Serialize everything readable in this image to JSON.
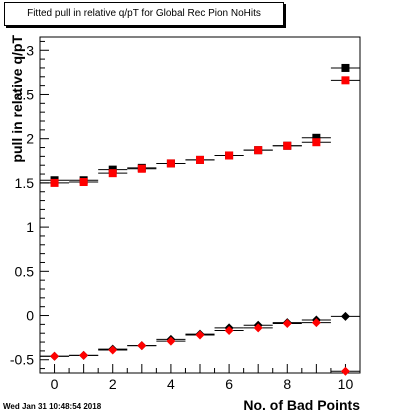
{
  "chart_data": {
    "type": "scatter",
    "title": "Fitted pull in relative q/pT for Global Rec Pion NoHits",
    "xlabel": "No. of Bad Points",
    "ylabel": "pull in relative q/pT",
    "xlim": [
      -0.5,
      10.5
    ],
    "ylim": [
      -0.65,
      3.15
    ],
    "xticks": [
      0,
      2,
      4,
      6,
      8,
      10
    ],
    "yticks": [
      -0.5,
      0,
      0.5,
      1,
      1.5,
      2,
      2.5,
      3
    ],
    "ytick_labels": [
      "-0.5",
      "0",
      "0.5",
      "1",
      "1.5",
      "2",
      "2.5",
      "3"
    ],
    "series": [
      {
        "marker": "square",
        "color": "#000000",
        "x": [
          0,
          1,
          2,
          3,
          4,
          5,
          6,
          7,
          8,
          9,
          10
        ],
        "y": [
          1.53,
          1.53,
          1.65,
          1.67,
          1.72,
          1.76,
          1.81,
          1.87,
          1.92,
          2.01,
          2.8
        ]
      },
      {
        "marker": "square",
        "color": "#ff0000",
        "x": [
          0,
          1,
          2,
          3,
          4,
          5,
          6,
          7,
          8,
          9,
          10
        ],
        "y": [
          1.5,
          1.51,
          1.61,
          1.66,
          1.72,
          1.76,
          1.81,
          1.87,
          1.92,
          1.96,
          2.66
        ]
      },
      {
        "marker": "diamond",
        "color": "#000000",
        "x": [
          0,
          1,
          2,
          3,
          4,
          5,
          6,
          7,
          8,
          9,
          10
        ],
        "y": [
          -0.46,
          -0.45,
          -0.38,
          -0.34,
          -0.27,
          -0.21,
          -0.14,
          -0.11,
          -0.08,
          -0.05,
          -0.01
        ]
      },
      {
        "marker": "diamond",
        "color": "#ff0000",
        "x": [
          0,
          1,
          2,
          3,
          4,
          5,
          6,
          7,
          8,
          9,
          10
        ],
        "y": [
          -0.46,
          -0.45,
          -0.39,
          -0.34,
          -0.29,
          -0.22,
          -0.17,
          -0.14,
          -0.09,
          -0.08,
          -0.63
        ]
      }
    ],
    "grid": false,
    "legend": "none"
  },
  "footer": {
    "timestamp": "Wed Jan 31 10:48:54 2018"
  }
}
